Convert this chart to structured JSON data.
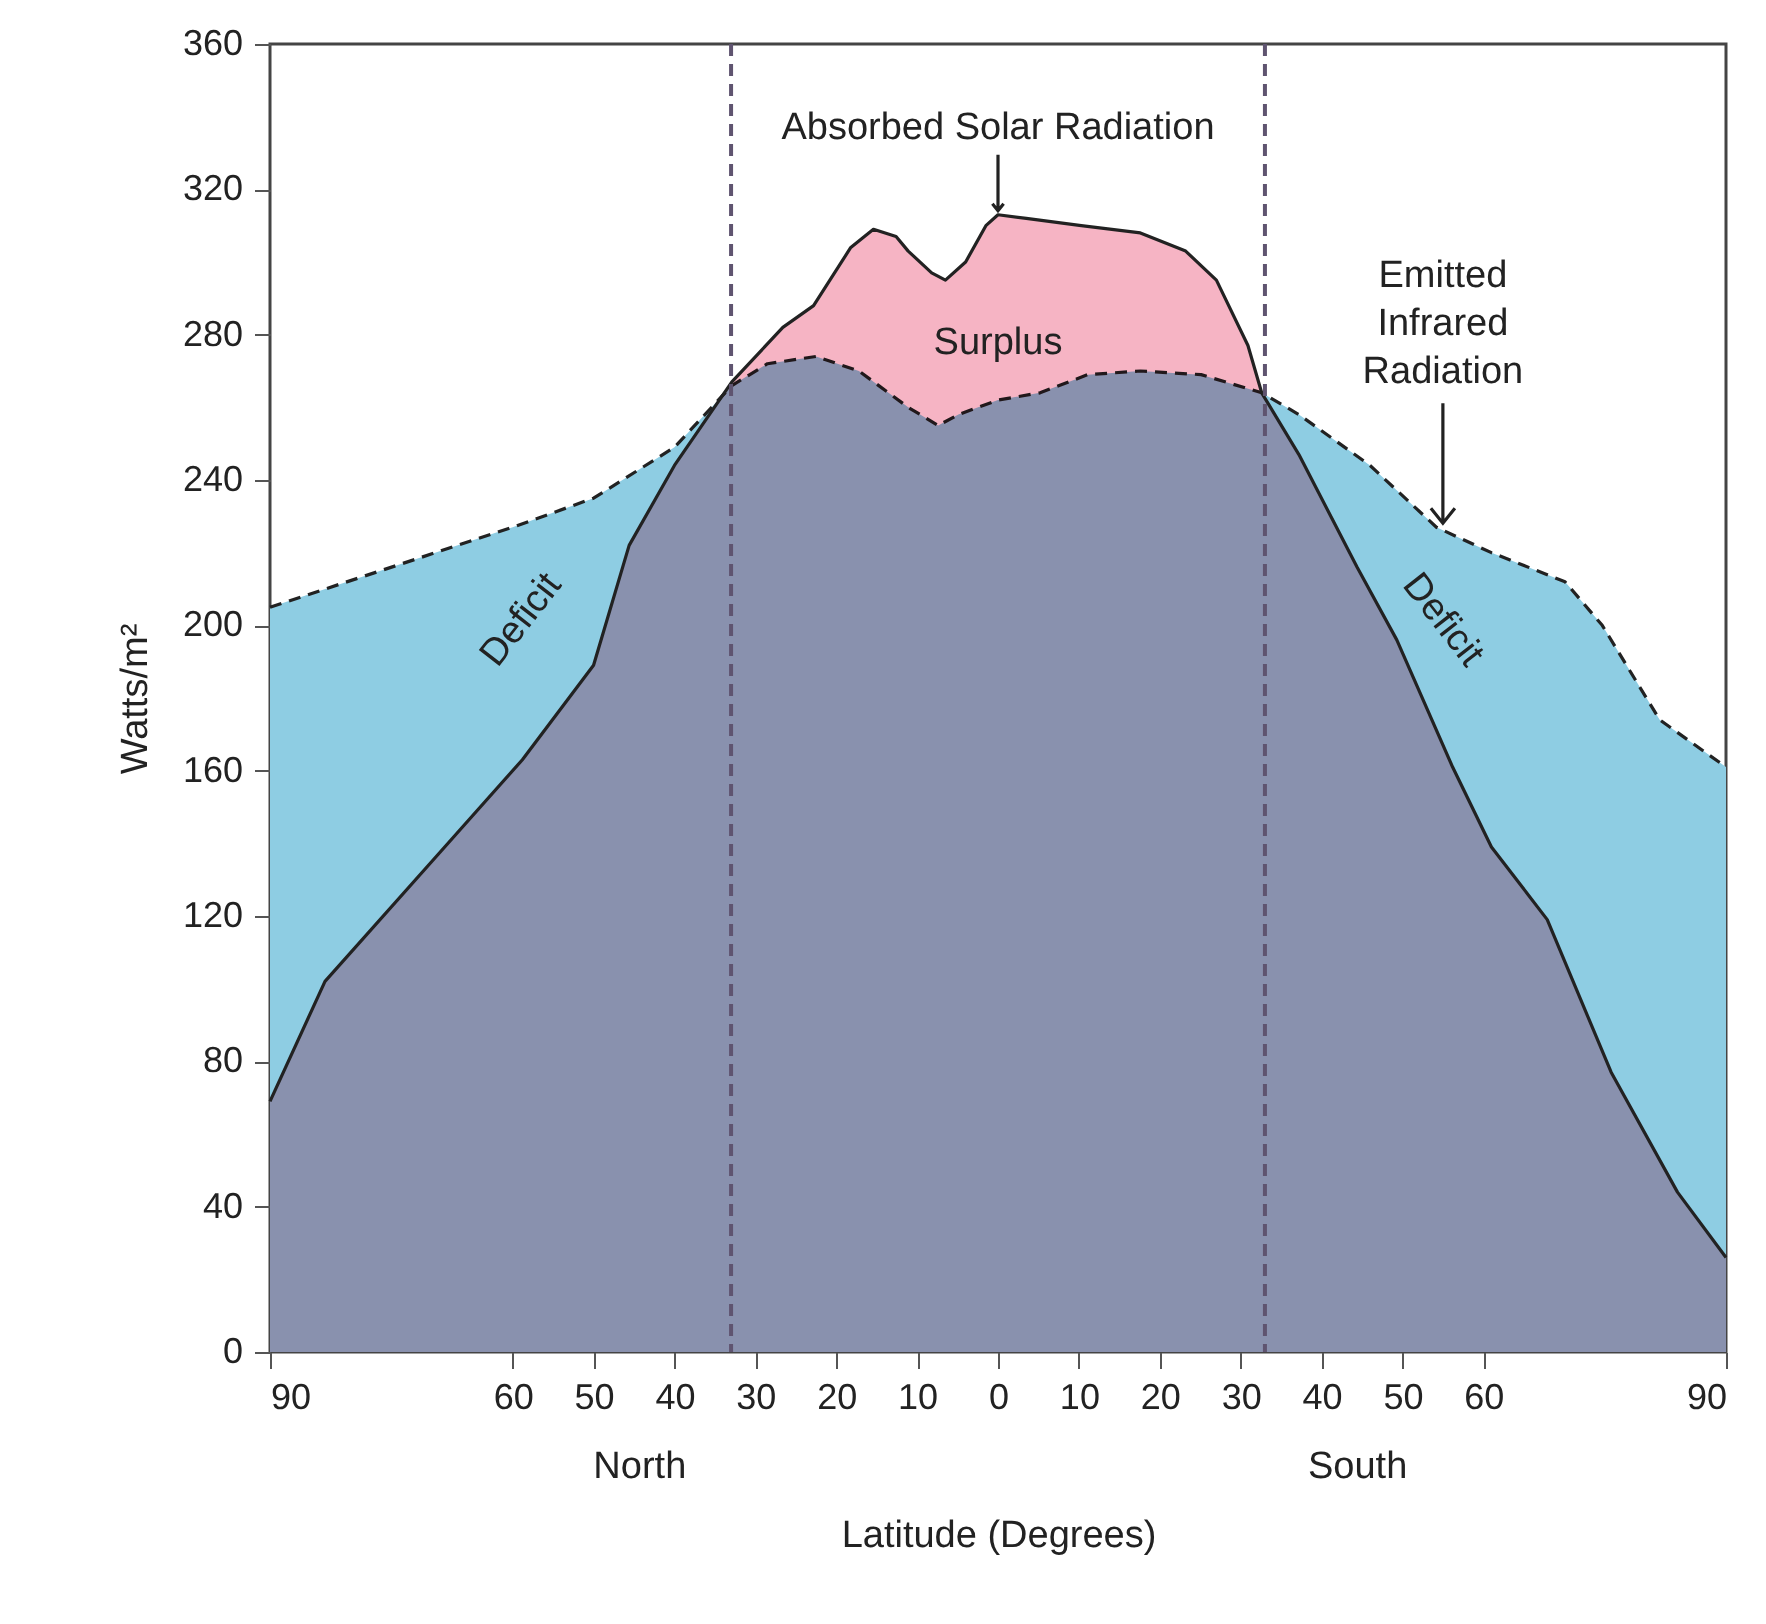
{
  "chart_data": {
    "type": "area",
    "xlabel": "Latitude (Degrees)",
    "ylabel": "Watts/m²",
    "xlim": [
      -90,
      90
    ],
    "xticks": [
      {
        "value": -90,
        "label": "90"
      },
      {
        "value": -60,
        "label": "60"
      },
      {
        "value": -50,
        "label": "50"
      },
      {
        "value": -40,
        "label": "40"
      },
      {
        "value": -30,
        "label": "30"
      },
      {
        "value": -20,
        "label": "20"
      },
      {
        "value": -10,
        "label": "10"
      },
      0,
      10,
      20,
      30,
      40,
      50,
      60,
      90
    ],
    "ylim": [
      0,
      360
    ],
    "yticks": [
      0,
      40,
      80,
      120,
      160,
      200,
      240,
      280,
      320,
      360
    ],
    "grid": false,
    "series": [
      {
        "color": "#8ecde3",
        "line_style": "dashed",
        "x": [
          -90,
          -60,
          -50,
          -40,
          -32.9,
          -28.5,
          -22.5,
          -17.2,
          -11.1,
          -7.4,
          -4.9,
          0,
          5.2,
          11.1,
          17.6,
          25.1,
          32.6,
          37.2,
          46,
          54.2,
          61,
          70.1,
          74.7,
          81.8,
          90
        ],
        "values": [
          205,
          227,
          235,
          249,
          266,
          272,
          274,
          270,
          260,
          255,
          258,
          262,
          264,
          269,
          270,
          269,
          264,
          258,
          244,
          227,
          220,
          212,
          200,
          174,
          161
        ]
      },
      {
        "color": "#f6b4c4",
        "line_style": "solid",
        "x": [
          -90,
          -83.2,
          -69.2,
          -58.8,
          -50,
          -45.6,
          -40,
          -32.9,
          -26.6,
          -22.8,
          -18.2,
          -15.4,
          -12.6,
          -11.1,
          -8.2,
          -6.5,
          -4,
          -1.5,
          0,
          3.5,
          10.3,
          17.6,
          23.2,
          27,
          30.9,
          32.6,
          37.2,
          44.4,
          49.3,
          56.2,
          61,
          67.9,
          75.8,
          84,
          90
        ],
        "values": [
          69,
          102,
          137,
          163,
          189,
          222,
          244,
          267,
          282,
          288,
          304,
          309,
          307,
          303,
          297,
          295,
          300,
          310,
          313,
          312,
          310,
          308,
          303,
          295,
          277,
          264,
          247,
          216,
          196,
          161,
          139,
          119,
          77,
          44,
          26
        ]
      }
    ],
    "ref_lines": [
      {
        "axis": "x",
        "value": -33,
        "color": "#5f5470",
        "line_style": "dashed"
      },
      {
        "axis": "x",
        "value": 33,
        "color": "#5f5470",
        "line_style": "dashed"
      }
    ],
    "annotations": [
      {
        "text": "Absorbed Solar Radiation",
        "x": 0,
        "y": 313
      },
      {
        "text": "Emitted Infrared Radiation",
        "x": 55,
        "y": 227
      },
      "Surplus",
      "Deficit",
      "Deficit",
      "North",
      "South"
    ]
  }
}
